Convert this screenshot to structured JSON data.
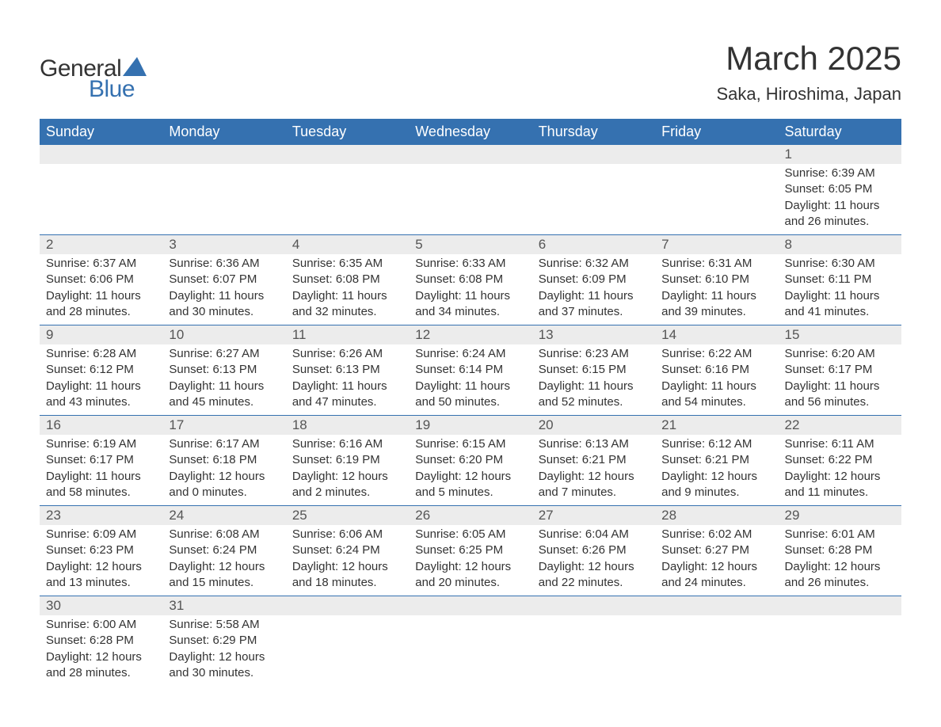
{
  "brand": {
    "word1": "General",
    "word2": "Blue",
    "logo_color": "#3571b0"
  },
  "title": "March 2025",
  "location": "Saka, Hiroshima, Japan",
  "colors": {
    "header_bg": "#3571b0",
    "header_text": "#ffffff",
    "daynum_bg": "#ececec",
    "border": "#3571b0",
    "text": "#333333"
  },
  "fonts": {
    "title_pt": 42,
    "location_pt": 22,
    "th_pt": 18,
    "daynum_pt": 17,
    "body_pt": 15,
    "logo_pt": 30
  },
  "columns": [
    "Sunday",
    "Monday",
    "Tuesday",
    "Wednesday",
    "Thursday",
    "Friday",
    "Saturday"
  ],
  "first_weekday_index": 6,
  "days": [
    {
      "n": 1,
      "sunrise": "6:39 AM",
      "sunset": "6:05 PM",
      "dh": 11,
      "dm": 26
    },
    {
      "n": 2,
      "sunrise": "6:37 AM",
      "sunset": "6:06 PM",
      "dh": 11,
      "dm": 28
    },
    {
      "n": 3,
      "sunrise": "6:36 AM",
      "sunset": "6:07 PM",
      "dh": 11,
      "dm": 30
    },
    {
      "n": 4,
      "sunrise": "6:35 AM",
      "sunset": "6:08 PM",
      "dh": 11,
      "dm": 32
    },
    {
      "n": 5,
      "sunrise": "6:33 AM",
      "sunset": "6:08 PM",
      "dh": 11,
      "dm": 34
    },
    {
      "n": 6,
      "sunrise": "6:32 AM",
      "sunset": "6:09 PM",
      "dh": 11,
      "dm": 37
    },
    {
      "n": 7,
      "sunrise": "6:31 AM",
      "sunset": "6:10 PM",
      "dh": 11,
      "dm": 39
    },
    {
      "n": 8,
      "sunrise": "6:30 AM",
      "sunset": "6:11 PM",
      "dh": 11,
      "dm": 41
    },
    {
      "n": 9,
      "sunrise": "6:28 AM",
      "sunset": "6:12 PM",
      "dh": 11,
      "dm": 43
    },
    {
      "n": 10,
      "sunrise": "6:27 AM",
      "sunset": "6:13 PM",
      "dh": 11,
      "dm": 45
    },
    {
      "n": 11,
      "sunrise": "6:26 AM",
      "sunset": "6:13 PM",
      "dh": 11,
      "dm": 47
    },
    {
      "n": 12,
      "sunrise": "6:24 AM",
      "sunset": "6:14 PM",
      "dh": 11,
      "dm": 50
    },
    {
      "n": 13,
      "sunrise": "6:23 AM",
      "sunset": "6:15 PM",
      "dh": 11,
      "dm": 52
    },
    {
      "n": 14,
      "sunrise": "6:22 AM",
      "sunset": "6:16 PM",
      "dh": 11,
      "dm": 54
    },
    {
      "n": 15,
      "sunrise": "6:20 AM",
      "sunset": "6:17 PM",
      "dh": 11,
      "dm": 56
    },
    {
      "n": 16,
      "sunrise": "6:19 AM",
      "sunset": "6:17 PM",
      "dh": 11,
      "dm": 58
    },
    {
      "n": 17,
      "sunrise": "6:17 AM",
      "sunset": "6:18 PM",
      "dh": 12,
      "dm": 0
    },
    {
      "n": 18,
      "sunrise": "6:16 AM",
      "sunset": "6:19 PM",
      "dh": 12,
      "dm": 2
    },
    {
      "n": 19,
      "sunrise": "6:15 AM",
      "sunset": "6:20 PM",
      "dh": 12,
      "dm": 5
    },
    {
      "n": 20,
      "sunrise": "6:13 AM",
      "sunset": "6:21 PM",
      "dh": 12,
      "dm": 7
    },
    {
      "n": 21,
      "sunrise": "6:12 AM",
      "sunset": "6:21 PM",
      "dh": 12,
      "dm": 9
    },
    {
      "n": 22,
      "sunrise": "6:11 AM",
      "sunset": "6:22 PM",
      "dh": 12,
      "dm": 11
    },
    {
      "n": 23,
      "sunrise": "6:09 AM",
      "sunset": "6:23 PM",
      "dh": 12,
      "dm": 13
    },
    {
      "n": 24,
      "sunrise": "6:08 AM",
      "sunset": "6:24 PM",
      "dh": 12,
      "dm": 15
    },
    {
      "n": 25,
      "sunrise": "6:06 AM",
      "sunset": "6:24 PM",
      "dh": 12,
      "dm": 18
    },
    {
      "n": 26,
      "sunrise": "6:05 AM",
      "sunset": "6:25 PM",
      "dh": 12,
      "dm": 20
    },
    {
      "n": 27,
      "sunrise": "6:04 AM",
      "sunset": "6:26 PM",
      "dh": 12,
      "dm": 22
    },
    {
      "n": 28,
      "sunrise": "6:02 AM",
      "sunset": "6:27 PM",
      "dh": 12,
      "dm": 24
    },
    {
      "n": 29,
      "sunrise": "6:01 AM",
      "sunset": "6:28 PM",
      "dh": 12,
      "dm": 26
    },
    {
      "n": 30,
      "sunrise": "6:00 AM",
      "sunset": "6:28 PM",
      "dh": 12,
      "dm": 28
    },
    {
      "n": 31,
      "sunrise": "5:58 AM",
      "sunset": "6:29 PM",
      "dh": 12,
      "dm": 30
    }
  ],
  "labels": {
    "sunrise": "Sunrise:",
    "sunset": "Sunset:",
    "daylight": "Daylight:",
    "hours": "hours",
    "and": "and",
    "minutes": "minutes."
  }
}
